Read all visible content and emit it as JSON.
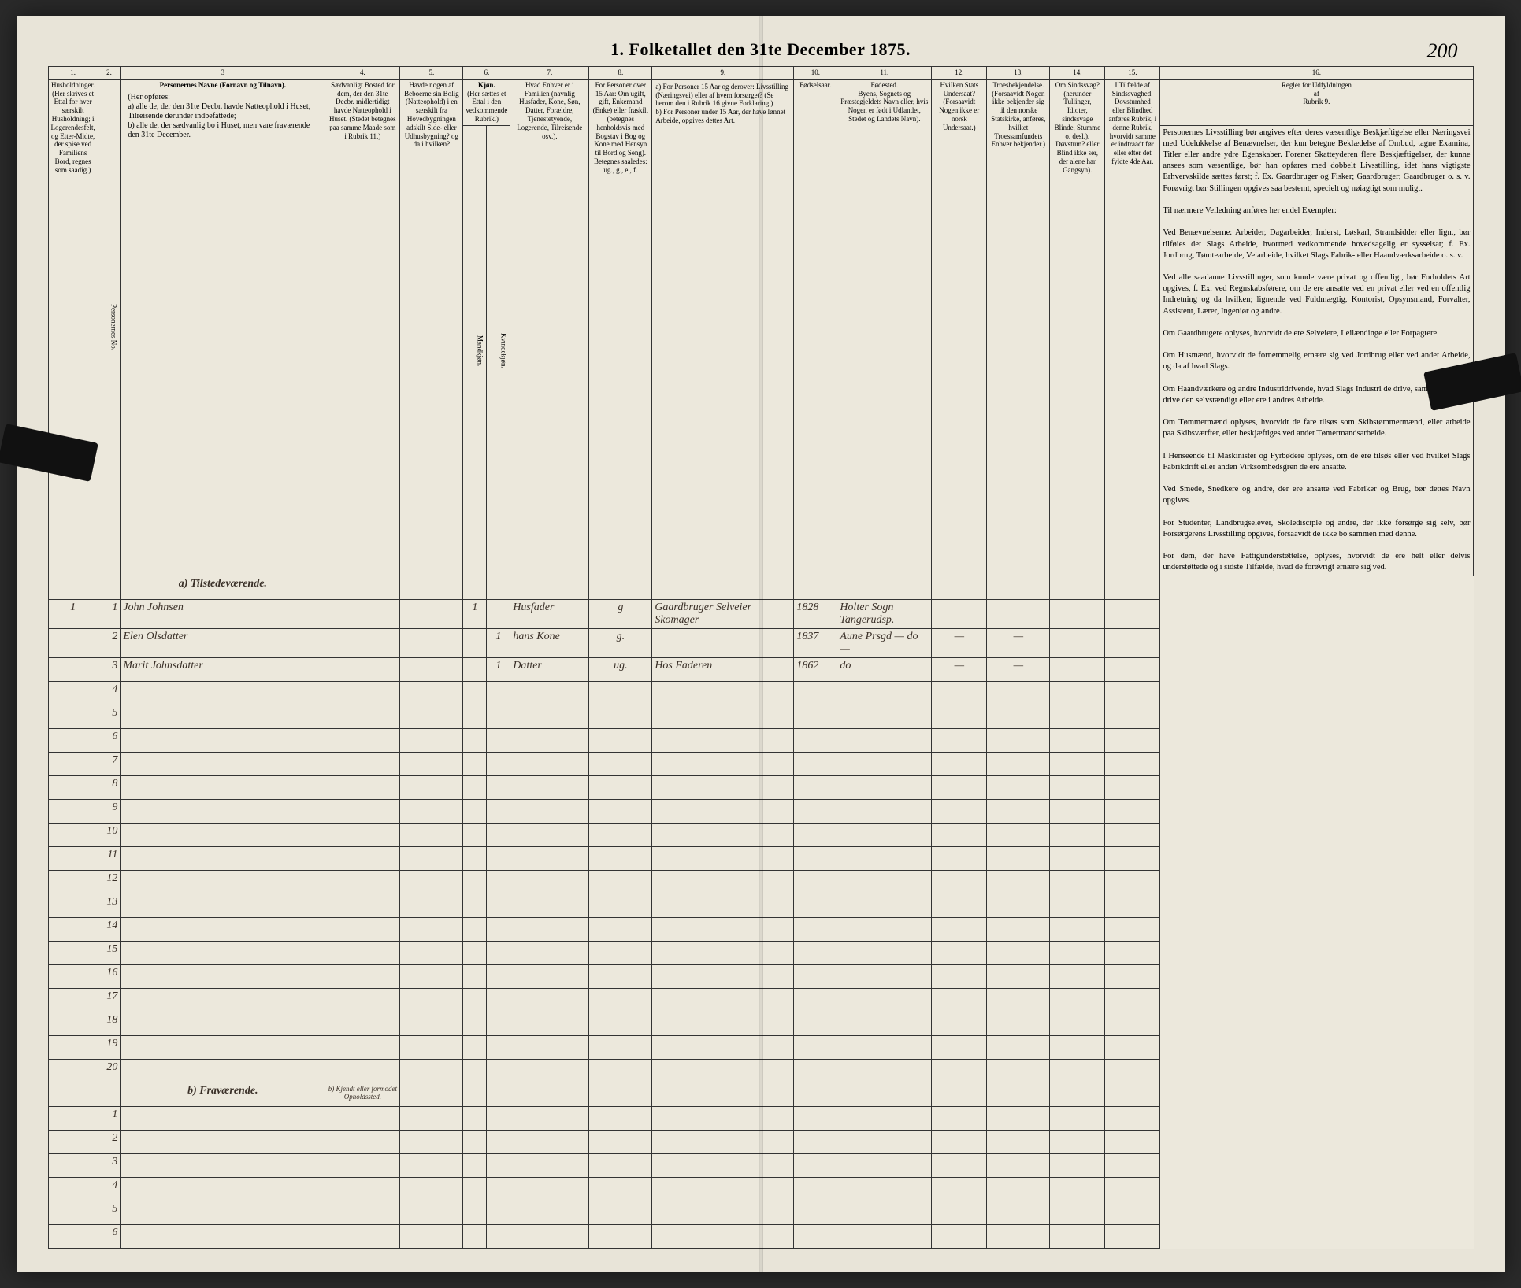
{
  "header": {
    "title": "1. Folketallet den 31te December 1875.",
    "page_number": "200"
  },
  "column_numbers": [
    "1.",
    "2.",
    "3",
    "4.",
    "5.",
    "6.",
    "",
    "7.",
    "8.",
    "9.",
    "10.",
    "11.",
    "12.",
    "13.",
    "14.",
    "15.",
    "16."
  ],
  "column_headers": {
    "c1": "Husholdninger. (Her skrives et Ettal for hver særskilt Husholdning; i Logerendesfelt, og Etter-Midte, der spise ved Familiens Bord, regnes som saadig.)",
    "c2": "Personernes No.",
    "c3_title": "Personernes Navne (Fornavn og Tilnavn).",
    "c3_body": "(Her opføres:\na) alle de, der den 31te Decbr. havde Natteophold i Huset, Tilreisende derunder indbefattede;\nb) alle de, der sædvanlig bo i Huset, men vare fraværende den 31te December.",
    "c4": "Sædvanligt Bosted for dem, der den 31te Decbr. midlertidigt havde Natteophold i Huset. (Stedet betegnes paa samme Maade som i Rubrik 11.)",
    "c5": "Havde nogen af Beboerne sin Bolig (Natteophold) i en særskilt fra Hovedbygningen adskilt Side- eller Udhusbygning? og da i hvilken?",
    "c6_top": "Kjøn.",
    "c6_sub": "(Her sættes et Ettal i den vedkommende Rubrik.)",
    "c6a": "Mandkjøn.",
    "c6b": "Kvindekjøn.",
    "c7": "Hvad Enhver er i Familien (navnlig Husfader, Kone, Søn, Datter, Forældre, Tjenestetyende, Logerende, Tilreisende osv.).",
    "c8": "For Personer over 15 Aar: Om ugift, gift, Enkemand (Enke) eller fraskilt (betegnes henholdsvis med Bogstav i Bog og Kone med Hensyn til Bord og Seng). Betegnes saaledes: ug., g., e., f.",
    "c9": "a) For Personer 15 Aar og derover: Livsstilling (Næringsvei) eller af hvem forsørget? (Se herom den i Rubrik 16 givne Forklaring.)\nb) For Personer under 15 Aar, der have lønnet Arbeide, opgives dettes Art.",
    "c10": "Fødselsaar.",
    "c11": "Fødested.\nByens, Sognets og Præstegjeldets Navn eller, hvis Nogen er født i Udlandet, Stedet og Landets Navn).",
    "c12": "Hvilken Stats Undersaat?\n(Forsaavidt Nogen ikke er norsk Undersaat.)",
    "c13": "Troesbekjendelse.\n(Forsaavidt Nogen ikke bekjender sig til den norske Statskirke, anføres, hvilket Troessamfundets Enhver bekjender.)",
    "c14": "Om Sindssvag? (herunder Tullinger, Idioter, sindssvage Blinde, Stumme o. desl.). Døvstum? eller Blind ikke ser, der alene har Gangsyn).",
    "c15": "I Tilfælde af Sindssvaghed: Dovstumhed eller Blindhed anføres Rubrik, i denne Rubrik, hvorvidt samme er indtraadt før eller efter det fyldte 4de Aar.",
    "c16_title": "Regler for Udfyldningen\naf\nRubrik 9."
  },
  "sections": {
    "present": "a) Tilstedeværende.",
    "absent": "b) Fraværende.",
    "absent_col4": "b) Kjendt eller formodet Opholdssted."
  },
  "rows": [
    {
      "n": "1",
      "hh": "1",
      "name": "John Johnsen",
      "c4": "",
      "c5": "",
      "m": "1",
      "k": "",
      "rel": "Husfader",
      "civ": "g",
      "occ": "Gaardbruger Selveier Skomager",
      "year": "1828",
      "place": "Holter Sogn Tangerudsp.",
      "c12": "",
      "c13": "",
      "c14": "",
      "c15": ""
    },
    {
      "n": "2",
      "hh": "",
      "name": "Elen Olsdatter",
      "c4": "",
      "c5": "",
      "m": "",
      "k": "1",
      "rel": "hans Kone",
      "civ": "g.",
      "occ": "",
      "year": "1837",
      "place": "Aune Prsgd — do —",
      "c12": "—",
      "c13": "—",
      "c14": "",
      "c15": ""
    },
    {
      "n": "3",
      "hh": "",
      "name": "Marit Johnsdatter",
      "c4": "",
      "c5": "",
      "m": "",
      "k": "1",
      "rel": "Datter",
      "civ": "ug.",
      "occ": "Hos Faderen",
      "year": "1862",
      "place": "do",
      "c12": "—",
      "c13": "—",
      "c14": "",
      "c15": ""
    }
  ],
  "blank_present_count": 17,
  "blank_absent_count": 6,
  "rules_text": "Personernes Livsstilling bør angives efter deres væsentlige Beskjæftigelse eller Næringsvei med Udelukkelse af Benævnelser, der kun betegne Beklædelse af Ombud, tagne Examina, Titler eller andre ydre Egenskaber. Forener Skatteyderen flere Beskjæftigelser, der kunne ansees som væsentlige, bør han opføres med dobbelt Livsstilling, idet hans vigtigste Erhvervskilde sættes først; f. Ex. Gaardbruger og Fisker; Gaardbruger; Gaardbruger o. s. v. Forøvrigt bør Stillingen opgives saa bestemt, specielt og nøiagtigt som muligt.\n\nTil nærmere Veiledning anføres her endel Exempler:\n\nVed Benævnelserne: Arbeider, Dagarbeider, Inderst, Løskarl, Strandsidder eller lign., bør tilføies det Slags Arbeide, hvormed vedkommende hovedsagelig er sysselsat; f. Ex. Jordbrug, Tømtearbeide, Veiarbeide, hvilket Slags Fabrik- eller Haandværksarbeide o. s. v.\n\nVed alle saadanne Livsstillinger, som kunde være privat og offentligt, bør Forholdets Art opgives, f. Ex. ved Regnskabsførere, om de ere ansatte ved en privat eller ved en offentlig Indretning og da hvilken; lignende ved Fuldmægtig, Kontorist, Opsynsmand, Forvalter, Assistent, Lærer, Ingeniør og andre.\n\nOm Gaardbrugere oplyses, hvorvidt de ere Selveiere, Leilændinge eller Forpagtere.\n\nOm Husmænd, hvorvidt de fornemmelig ernære sig ved Jordbrug eller ved andet Arbeide, og da af hvad Slags.\n\nOm Haandværkere og andre Industridrivende, hvad Slags Industri de drive, samt hvorvidt de drive den selvstændigt eller ere i andres Arbeide.\n\nOm Tømmermænd oplyses, hvorvidt de fare tilsøs som Skibstømmermænd, eller arbeide paa Skibsværfter, eller beskjæftiges ved andet Tømermandsarbeide.\n\nI Henseende til Maskinister og Fyrbødere oplyses, om de ere tilsøs eller ved hvilket Slags Fabrikdrift eller anden Virksomhedsgren de ere ansatte.\n\nVed Smede, Snedkere og andre, der ere ansatte ved Fabriker og Brug, bør dettes Navn opgives.\n\nFor Studenter, Landbrugselever, Skoledisciple og andre, der ikke forsørge sig selv, bør Forsørgerens Livsstilling opgives, forsaavidt de ikke bo sammen med denne.\n\nFor dem, der have Fattigunderstøttelse, oplyses, hvorvidt de ere helt eller delvis understøttede og i sidste Tilfælde, hvad de forøvrigt ernære sig ved."
}
